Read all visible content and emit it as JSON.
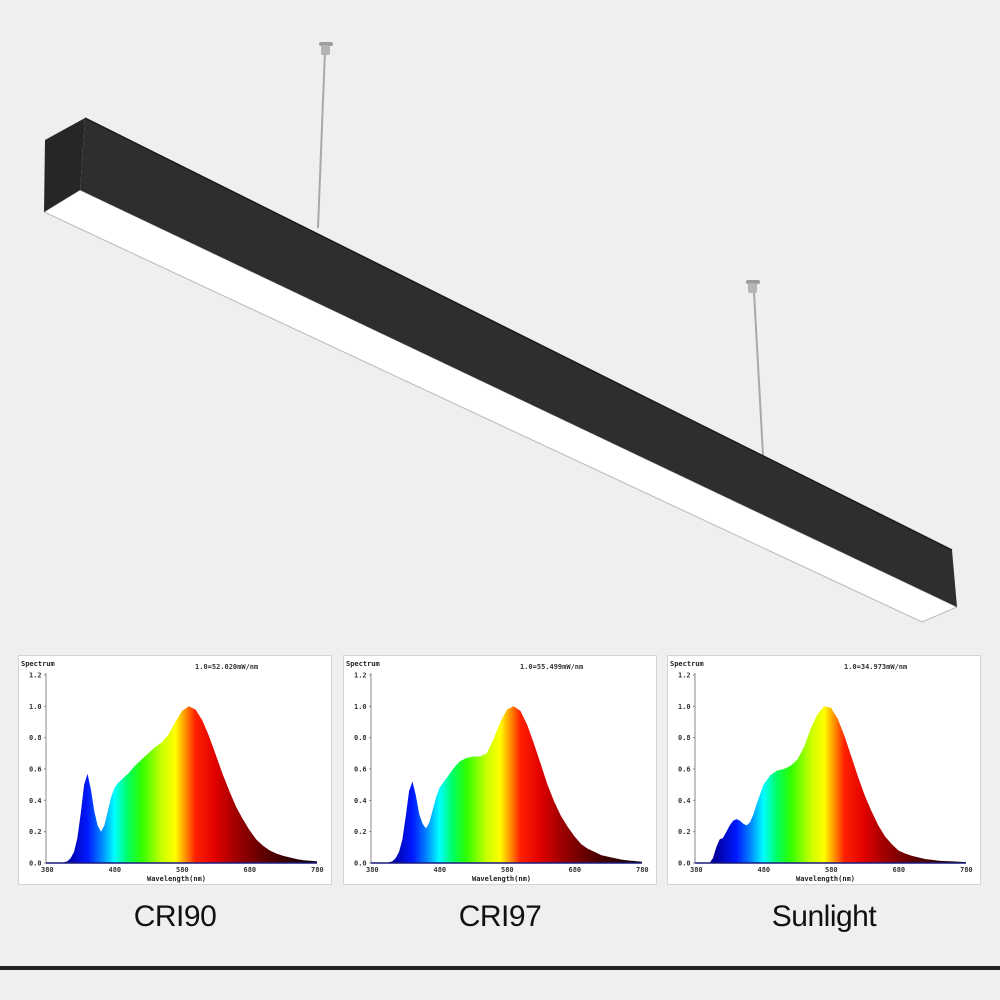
{
  "product": {
    "name": "Linear pendant LED light",
    "body_color": "#2b2b2b",
    "diffuser_color": "#ffffff"
  },
  "captions": [
    "CRI90",
    "CRI97",
    "Sunlight"
  ],
  "chart_data": [
    {
      "type": "area",
      "title": "Spectrum",
      "annotation": "1.0=52.020mW/nm",
      "xlabel": "Wavelength(nm)",
      "ylabel": "Spectrum",
      "xlim": [
        380,
        780
      ],
      "ylim": [
        0,
        1.2
      ],
      "xticks": [
        380,
        480,
        580,
        680,
        780
      ],
      "yticks": [
        0.0,
        0.2,
        0.4,
        0.6,
        0.8,
        1.0,
        1.2
      ],
      "grid": false,
      "legend": null,
      "fill": "wavelength-rainbow",
      "caption": "CRI90",
      "x": [
        380,
        400,
        410,
        415,
        420,
        425,
        430,
        435,
        440,
        445,
        450,
        455,
        460,
        465,
        470,
        475,
        480,
        485,
        490,
        495,
        500,
        510,
        520,
        530,
        540,
        550,
        560,
        570,
        580,
        590,
        600,
        610,
        620,
        630,
        640,
        650,
        660,
        670,
        680,
        690,
        700,
        710,
        720,
        730,
        740,
        750,
        760,
        770,
        780
      ],
      "y": [
        0.0,
        0.0,
        0.01,
        0.03,
        0.07,
        0.16,
        0.32,
        0.5,
        0.57,
        0.47,
        0.33,
        0.24,
        0.2,
        0.24,
        0.33,
        0.42,
        0.48,
        0.51,
        0.53,
        0.55,
        0.57,
        0.62,
        0.66,
        0.7,
        0.74,
        0.77,
        0.82,
        0.9,
        0.97,
        1.0,
        0.98,
        0.91,
        0.81,
        0.69,
        0.57,
        0.46,
        0.36,
        0.28,
        0.21,
        0.15,
        0.11,
        0.08,
        0.06,
        0.045,
        0.035,
        0.025,
        0.018,
        0.014,
        0.01
      ]
    },
    {
      "type": "area",
      "title": "Spectrum",
      "annotation": "1.0=55.499mW/nm",
      "xlabel": "Wavelength(nm)",
      "ylabel": "Spectrum",
      "xlim": [
        380,
        780
      ],
      "ylim": [
        0,
        1.2
      ],
      "xticks": [
        380,
        480,
        580,
        680,
        780
      ],
      "yticks": [
        0.0,
        0.2,
        0.4,
        0.6,
        0.8,
        1.0,
        1.2
      ],
      "grid": false,
      "legend": null,
      "fill": "wavelength-rainbow",
      "caption": "CRI97",
      "x": [
        380,
        400,
        410,
        415,
        420,
        425,
        430,
        435,
        440,
        445,
        450,
        455,
        460,
        465,
        470,
        475,
        480,
        490,
        500,
        510,
        520,
        530,
        540,
        550,
        560,
        570,
        580,
        590,
        600,
        610,
        620,
        630,
        640,
        650,
        660,
        670,
        680,
        690,
        700,
        710,
        720,
        730,
        740,
        750,
        760,
        770,
        780
      ],
      "y": [
        0.0,
        0.0,
        0.01,
        0.03,
        0.07,
        0.15,
        0.3,
        0.46,
        0.52,
        0.43,
        0.31,
        0.25,
        0.22,
        0.26,
        0.34,
        0.42,
        0.48,
        0.54,
        0.6,
        0.65,
        0.67,
        0.68,
        0.68,
        0.7,
        0.79,
        0.9,
        0.98,
        1.0,
        0.97,
        0.88,
        0.76,
        0.63,
        0.5,
        0.39,
        0.3,
        0.23,
        0.17,
        0.12,
        0.09,
        0.07,
        0.05,
        0.04,
        0.03,
        0.022,
        0.016,
        0.012,
        0.008
      ]
    },
    {
      "type": "area",
      "title": "Spectrum",
      "annotation": "1.0=34.973mW/nm",
      "xlabel": "Wavelength(nm)",
      "ylabel": "Spectrum",
      "xlim": [
        380,
        780
      ],
      "ylim": [
        0,
        1.2
      ],
      "xticks": [
        380,
        480,
        580,
        680,
        780
      ],
      "yticks": [
        0.0,
        0.2,
        0.4,
        0.6,
        0.8,
        1.0,
        1.2
      ],
      "grid": false,
      "legend": null,
      "fill": "wavelength-rainbow",
      "caption": "Sunlight",
      "x": [
        380,
        400,
        405,
        410,
        415,
        420,
        425,
        430,
        435,
        440,
        445,
        450,
        455,
        460,
        465,
        470,
        480,
        490,
        500,
        510,
        520,
        530,
        540,
        550,
        560,
        570,
        580,
        590,
        600,
        610,
        620,
        630,
        640,
        650,
        660,
        670,
        680,
        690,
        700,
        710,
        720,
        730,
        740,
        750,
        760,
        770,
        780
      ],
      "y": [
        0.0,
        0.0,
        0.03,
        0.1,
        0.15,
        0.16,
        0.2,
        0.24,
        0.27,
        0.28,
        0.27,
        0.25,
        0.24,
        0.26,
        0.31,
        0.38,
        0.5,
        0.56,
        0.59,
        0.6,
        0.62,
        0.66,
        0.74,
        0.86,
        0.95,
        1.0,
        0.99,
        0.92,
        0.81,
        0.68,
        0.55,
        0.43,
        0.33,
        0.24,
        0.17,
        0.12,
        0.08,
        0.06,
        0.045,
        0.035,
        0.025,
        0.02,
        0.015,
        0.012,
        0.01,
        0.008,
        0.006
      ]
    }
  ]
}
